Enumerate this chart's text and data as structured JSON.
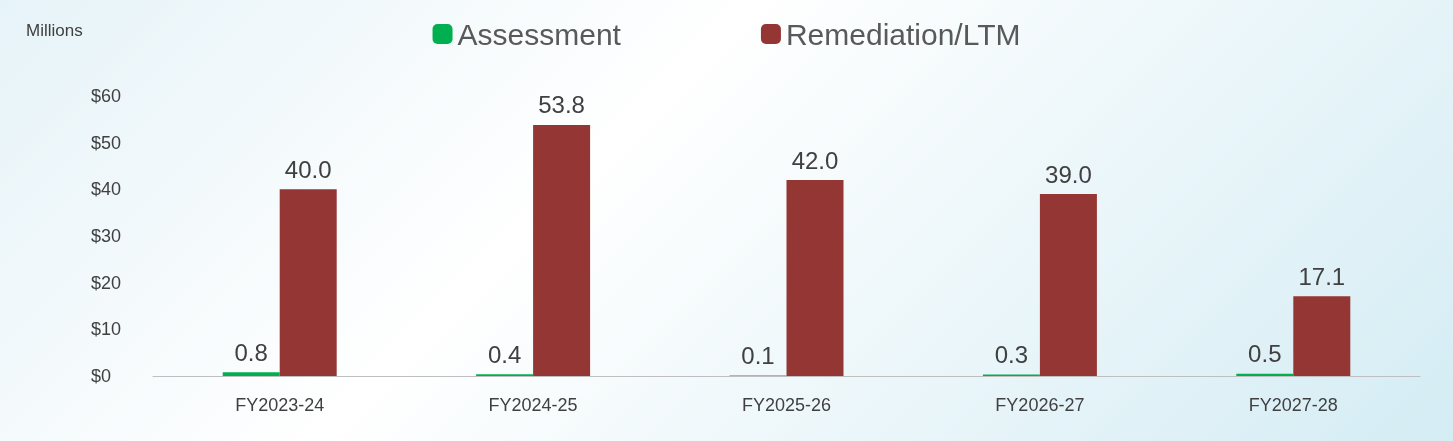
{
  "chart_data": {
    "type": "bar",
    "ylabel": "Millions",
    "categories": [
      "FY2023-24",
      "FY2024-25",
      "FY2025-26",
      "FY2026-27",
      "FY2027-28"
    ],
    "series": [
      {
        "name": "Assessment",
        "color": "#00b050",
        "values": [
          0.8,
          0.4,
          0.1,
          0.3,
          0.5
        ],
        "value_labels": [
          "0.8",
          "0.4",
          "0.1",
          "0.3",
          "0.5"
        ]
      },
      {
        "name": "Remediation/LTM",
        "color": "#943634",
        "values": [
          40.0,
          53.8,
          42.0,
          39.0,
          17.1
        ],
        "value_labels": [
          "40.0",
          "53.8",
          "42.0",
          "39.0",
          "17.1"
        ]
      }
    ],
    "ylim": [
      0,
      60
    ],
    "yticks": [
      {
        "value": 0,
        "label": "$0"
      },
      {
        "value": 10,
        "label": "$10"
      },
      {
        "value": 20,
        "label": "$20"
      },
      {
        "value": 30,
        "label": "$30"
      },
      {
        "value": 40,
        "label": "$40"
      },
      {
        "value": 50,
        "label": "$50"
      },
      {
        "value": 60,
        "label": "$60"
      }
    ],
    "grid": false,
    "legend": "top"
  }
}
